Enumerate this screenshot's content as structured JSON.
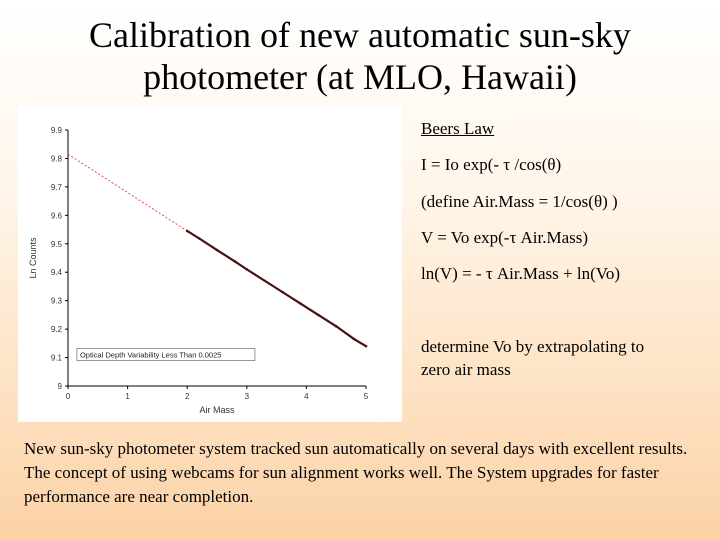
{
  "slide": {
    "title_line1": "Calibration of new automatic sun-sky",
    "title_line2": "photometer (at MLO, Hawaii)"
  },
  "notes": {
    "heading": "Beers Law",
    "eq1": "I = Io exp(- τ /cos(θ)",
    "eq2": "(define Air.Mass = 1/cos(θ) )",
    "eq3": "V = Vo exp(-τ Air.Mass)",
    "eq4": "ln(V) = - τ Air.Mass + ln(Vo)",
    "determine_line1": "determine Vo by extrapolating to",
    "determine_line2": "zero air mass"
  },
  "summary": "New sun-sky photometer system tracked sun automatically on several days with excellent results. The concept of using webcams for sun alignment works well. The System upgrades for faster performance are near completion.",
  "chart_data": {
    "type": "scatter",
    "title": "",
    "xlabel": "Air Mass",
    "ylabel": "Ln Counts",
    "xlim": [
      0,
      5
    ],
    "ylim": [
      9,
      9.9
    ],
    "x_ticks": [
      0,
      1,
      2,
      3,
      4,
      5
    ],
    "y_ticks": [
      "9",
      "9.1",
      "9.2",
      "9.3",
      "9.4",
      "9.5",
      "9.6",
      "9.7",
      "9.8",
      "9.9"
    ],
    "grid": false,
    "measured": {
      "x": [
        2.0,
        2.2,
        2.5,
        2.8,
        3.0,
        3.3,
        3.6,
        3.9,
        4.2,
        4.5,
        4.8,
        5.0
      ],
      "y": [
        9.545,
        9.519,
        9.478,
        9.438,
        9.41,
        9.37,
        9.33,
        9.29,
        9.25,
        9.21,
        9.165,
        9.14
      ]
    },
    "fit_line": {
      "x": [
        0,
        2
      ],
      "y": [
        9.815,
        9.545
      ]
    },
    "annotation": "Optical Depth Variability Less Than 0.0025",
    "colors": {
      "measured": "#4a1010",
      "fit_line": "#e05050",
      "axes": "#000000"
    }
  }
}
